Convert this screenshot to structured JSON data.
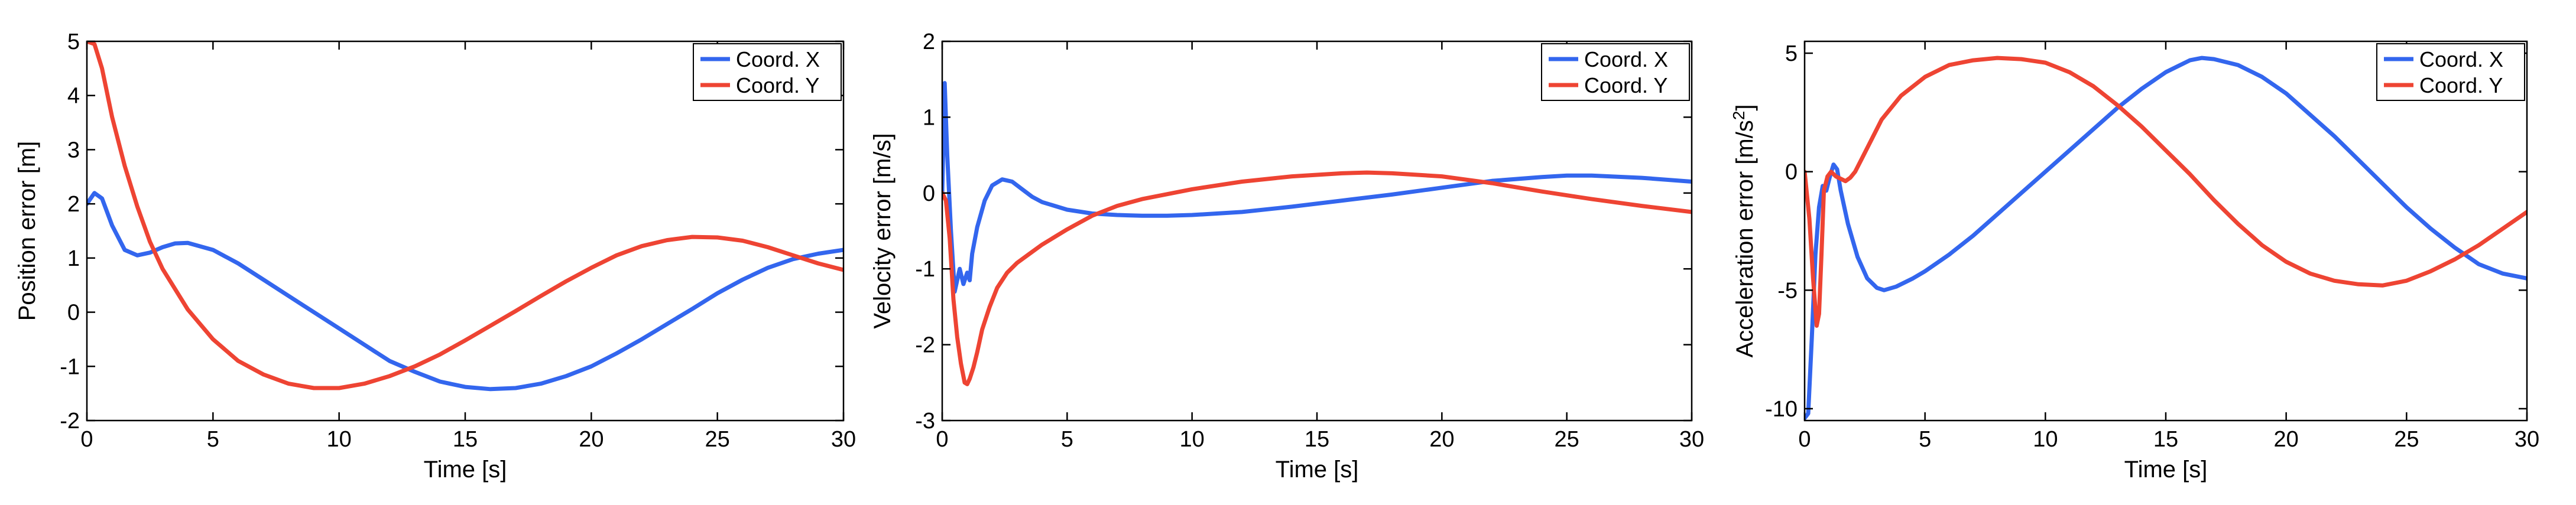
{
  "colors": {
    "x_series": "#3366ee",
    "y_series": "#ee4433",
    "axes": "#000000",
    "background": "#ffffff"
  },
  "chart_data": [
    {
      "type": "line",
      "title": "",
      "xlabel": "Time [s]",
      "ylabel": "Position error [m]",
      "xlim": [
        0,
        30
      ],
      "ylim": [
        -2,
        5
      ],
      "xticks": [
        "0",
        "5",
        "10",
        "15",
        "20",
        "25",
        "30"
      ],
      "yticks": [
        "-2",
        "-1",
        "0",
        "1",
        "2",
        "3",
        "4",
        "5"
      ],
      "grid": false,
      "legend_position": "top-right",
      "series": [
        {
          "name": "Coord. X",
          "color": "#3366ee",
          "x": [
            0,
            0.3,
            0.6,
            1,
            1.5,
            2,
            2.5,
            3,
            3.5,
            4,
            5,
            6,
            7,
            8,
            9,
            10,
            11,
            12,
            13,
            14,
            15,
            16,
            17,
            18,
            19,
            20,
            21,
            22,
            23,
            24,
            25,
            26,
            27,
            28,
            29,
            30
          ],
          "y": [
            2,
            2.2,
            2.1,
            1.6,
            1.15,
            1.05,
            1.1,
            1.2,
            1.27,
            1.28,
            1.15,
            0.9,
            0.6,
            0.3,
            0.0,
            -0.3,
            -0.6,
            -0.9,
            -1.1,
            -1.28,
            -1.38,
            -1.42,
            -1.4,
            -1.32,
            -1.18,
            -1.0,
            -0.76,
            -0.5,
            -0.22,
            0.06,
            0.35,
            0.6,
            0.82,
            0.98,
            1.08,
            1.15
          ]
        },
        {
          "name": "Coord. Y",
          "color": "#ee4433",
          "x": [
            0,
            0.3,
            0.6,
            1,
            1.5,
            2,
            2.5,
            3,
            4,
            5,
            6,
            7,
            8,
            9,
            10,
            11,
            12,
            13,
            14,
            15,
            16,
            17,
            18,
            19,
            20,
            21,
            22,
            23,
            24,
            25,
            26,
            27,
            28,
            29,
            30
          ],
          "y": [
            5,
            4.95,
            4.5,
            3.6,
            2.7,
            1.95,
            1.3,
            0.8,
            0.05,
            -0.5,
            -0.9,
            -1.15,
            -1.32,
            -1.4,
            -1.4,
            -1.32,
            -1.18,
            -1.0,
            -0.78,
            -0.52,
            -0.25,
            0.02,
            0.3,
            0.57,
            0.82,
            1.05,
            1.22,
            1.33,
            1.39,
            1.38,
            1.32,
            1.2,
            1.05,
            0.9,
            0.78
          ]
        }
      ]
    },
    {
      "type": "line",
      "title": "",
      "xlabel": "Time [s]",
      "ylabel": "Velocity error [m/s]",
      "xlim": [
        0,
        30
      ],
      "ylim": [
        -3,
        2
      ],
      "xticks": [
        "0",
        "5",
        "10",
        "15",
        "20",
        "25",
        "30"
      ],
      "yticks": [
        "-3",
        "-2",
        "-1",
        "0",
        "1",
        "2"
      ],
      "grid": false,
      "legend_position": "top-right",
      "series": [
        {
          "name": "Coord. X",
          "color": "#3366ee",
          "x": [
            0,
            0.1,
            0.2,
            0.35,
            0.5,
            0.7,
            0.85,
            1.0,
            1.1,
            1.2,
            1.4,
            1.7,
            2,
            2.4,
            2.8,
            3.2,
            3.6,
            4,
            5,
            6,
            7,
            8,
            9,
            10,
            12,
            14,
            16,
            18,
            20,
            22,
            24,
            25,
            26,
            28,
            30
          ],
          "y": [
            0,
            1.45,
            0.5,
            -0.5,
            -1.3,
            -1.0,
            -1.2,
            -1.05,
            -1.15,
            -0.8,
            -0.45,
            -0.1,
            0.1,
            0.18,
            0.15,
            0.05,
            -0.05,
            -0.12,
            -0.22,
            -0.27,
            -0.29,
            -0.3,
            -0.3,
            -0.29,
            -0.25,
            -0.18,
            -0.1,
            -0.02,
            0.07,
            0.16,
            0.21,
            0.23,
            0.23,
            0.2,
            0.15
          ]
        },
        {
          "name": "Coord. Y",
          "color": "#ee4433",
          "x": [
            0,
            0.15,
            0.3,
            0.45,
            0.6,
            0.75,
            0.9,
            1.0,
            1.1,
            1.25,
            1.4,
            1.6,
            1.9,
            2.2,
            2.6,
            3,
            3.5,
            4,
            5,
            6,
            7,
            8,
            10,
            12,
            14,
            16,
            17,
            18,
            20,
            22,
            24,
            26,
            28,
            30
          ],
          "y": [
            0,
            -0.1,
            -0.6,
            -1.4,
            -1.9,
            -2.25,
            -2.5,
            -2.52,
            -2.45,
            -2.3,
            -2.1,
            -1.8,
            -1.5,
            -1.25,
            -1.05,
            -0.92,
            -0.8,
            -0.68,
            -0.48,
            -0.3,
            -0.17,
            -0.08,
            0.05,
            0.15,
            0.22,
            0.26,
            0.27,
            0.26,
            0.22,
            0.13,
            0.02,
            -0.08,
            -0.17,
            -0.25
          ]
        }
      ]
    },
    {
      "type": "line",
      "title": "",
      "xlabel": "Time [s]",
      "ylabel": "Acceleration error [m/s",
      "ylabel_superscript": "2",
      "ylabel_suffix": "]",
      "xlim": [
        0,
        30
      ],
      "ylim": [
        -10.5,
        5.5
      ],
      "xticks": [
        "0",
        "5",
        "10",
        "15",
        "20",
        "25",
        "30"
      ],
      "yticks": [
        "-10",
        "-5",
        "0",
        "5"
      ],
      "grid": false,
      "legend_position": "top-right",
      "series": [
        {
          "name": "Coord. X",
          "color": "#3366ee",
          "x": [
            0,
            0.15,
            0.3,
            0.45,
            0.6,
            0.75,
            0.9,
            1.05,
            1.2,
            1.35,
            1.5,
            1.8,
            2.2,
            2.6,
            3,
            3.3,
            3.8,
            4.5,
            5,
            6,
            7,
            8,
            9,
            10,
            11,
            12,
            13,
            14,
            15,
            16,
            16.5,
            17,
            18,
            19,
            20,
            21,
            22,
            23,
            24,
            25,
            26,
            27,
            28,
            29,
            30
          ],
          "y": [
            -10.4,
            -10.2,
            -7,
            -3.5,
            -1.5,
            -0.6,
            -0.8,
            -0.2,
            0.3,
            0.1,
            -0.8,
            -2.2,
            -3.6,
            -4.5,
            -4.9,
            -5.0,
            -4.85,
            -4.5,
            -4.2,
            -3.5,
            -2.7,
            -1.8,
            -0.9,
            0.0,
            0.9,
            1.8,
            2.7,
            3.5,
            4.2,
            4.7,
            4.8,
            4.75,
            4.5,
            4.0,
            3.3,
            2.4,
            1.5,
            0.5,
            -0.5,
            -1.5,
            -2.4,
            -3.2,
            -3.9,
            -4.3,
            -4.5
          ]
        },
        {
          "name": "Coord. Y",
          "color": "#ee4433",
          "x": [
            0,
            0.2,
            0.35,
            0.5,
            0.6,
            0.7,
            0.8,
            0.95,
            1.1,
            1.3,
            1.5,
            1.7,
            1.9,
            2.1,
            2.4,
            2.8,
            3.2,
            4,
            5,
            6,
            7,
            8,
            9,
            10,
            11,
            12,
            13,
            14,
            15,
            16,
            17,
            18,
            19,
            20,
            21,
            22,
            23,
            24,
            25,
            26,
            27,
            28,
            29,
            30
          ],
          "y": [
            0,
            -2,
            -4.5,
            -6.5,
            -6.0,
            -3.5,
            -0.8,
            -0.2,
            0.0,
            -0.2,
            -0.3,
            -0.4,
            -0.25,
            0.0,
            0.6,
            1.4,
            2.2,
            3.2,
            4.0,
            4.5,
            4.7,
            4.8,
            4.75,
            4.6,
            4.2,
            3.6,
            2.8,
            1.9,
            0.9,
            -0.1,
            -1.2,
            -2.2,
            -3.1,
            -3.8,
            -4.3,
            -4.6,
            -4.75,
            -4.8,
            -4.6,
            -4.2,
            -3.7,
            -3.1,
            -2.4,
            -1.7
          ]
        }
      ]
    }
  ]
}
